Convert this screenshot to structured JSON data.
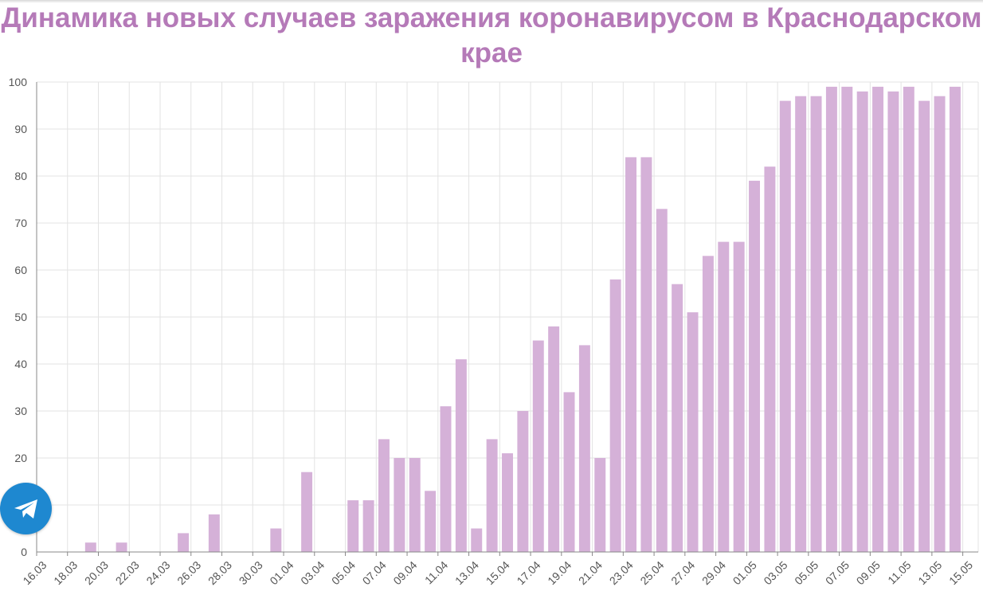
{
  "chart_data": {
    "type": "bar",
    "title": "Динамика новых случаев заражения коронавирусом в Краснодарском крае",
    "xlabel": "",
    "ylabel": "",
    "ylim": [
      0,
      100
    ],
    "yticks": [
      0,
      10,
      20,
      30,
      40,
      50,
      60,
      70,
      80,
      90,
      100
    ],
    "grid": true,
    "bar_color": "#d5b1d8",
    "categories": [
      "16.03",
      "17.03",
      "18.03",
      "19.03",
      "20.03",
      "21.03",
      "22.03",
      "23.03",
      "24.03",
      "25.03",
      "26.03",
      "27.03",
      "28.03",
      "29.03",
      "30.03",
      "31.03",
      "01.04",
      "02.04",
      "03.04",
      "04.04",
      "05.04",
      "06.04",
      "07.04",
      "08.04",
      "09.04",
      "10.04",
      "11.04",
      "12.04",
      "13.04",
      "14.04",
      "15.04",
      "16.04",
      "17.04",
      "18.04",
      "19.04",
      "20.04",
      "21.04",
      "22.04",
      "23.04",
      "24.04",
      "25.04",
      "26.04",
      "27.04",
      "28.04",
      "29.04",
      "30.04",
      "01.05",
      "02.05",
      "03.05",
      "04.05",
      "05.05",
      "06.05",
      "07.05",
      "08.05",
      "09.05",
      "10.05",
      "11.05",
      "12.05",
      "13.05",
      "14.05",
      "15.05"
    ],
    "values": [
      0,
      0,
      0,
      2,
      0,
      2,
      0,
      0,
      0,
      4,
      0,
      8,
      0,
      0,
      0,
      5,
      0,
      17,
      0,
      0,
      11,
      11,
      24,
      20,
      20,
      13,
      31,
      41,
      5,
      24,
      21,
      30,
      45,
      48,
      34,
      44,
      20,
      58,
      84,
      84,
      73,
      57,
      51,
      63,
      66,
      66,
      79,
      82,
      96,
      97,
      97,
      99,
      99,
      98,
      99,
      98,
      99,
      96,
      97,
      99,
      0
    ],
    "tick_labels": [
      "16.03",
      "18.03",
      "20.03",
      "22.03",
      "24.03",
      "26.03",
      "28.03",
      "30.03",
      "01.04",
      "03.04",
      "05.04",
      "07.04",
      "09.04",
      "11.04",
      "13.04",
      "15.04",
      "17.04",
      "19.04",
      "21.04",
      "23.04",
      "25.04",
      "27.04",
      "29.04",
      "01.05",
      "03.05",
      "05.05",
      "07.05",
      "09.05",
      "11.05",
      "13.05",
      "15.05"
    ]
  },
  "telegram_button": {
    "icon": "telegram-icon",
    "color": "#1e88d0"
  }
}
